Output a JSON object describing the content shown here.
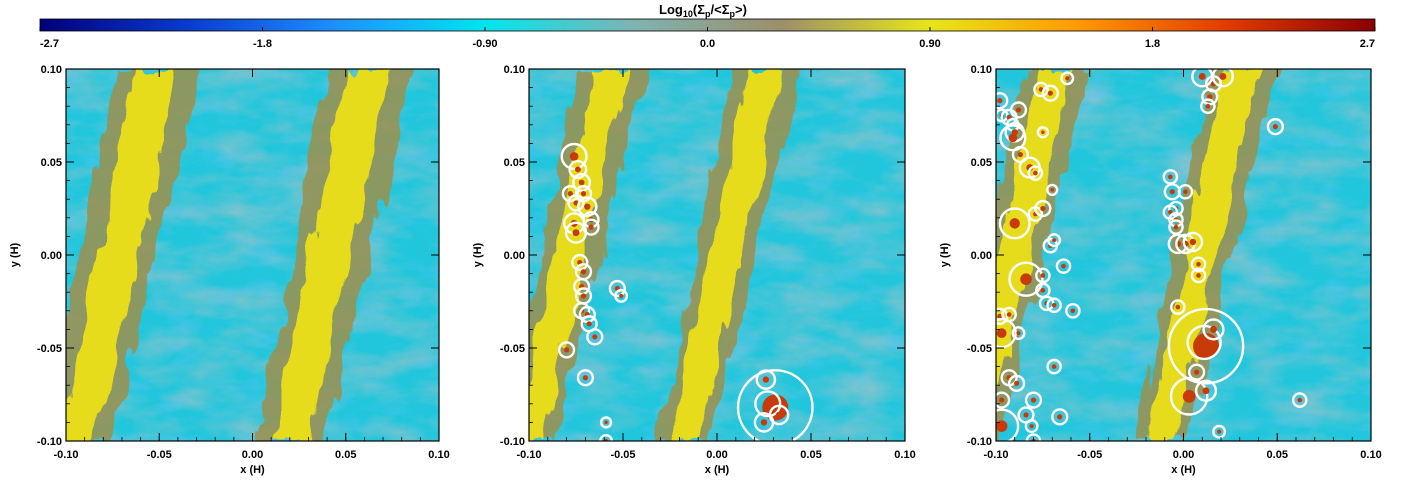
{
  "colorbar": {
    "title_main": "Log",
    "title_sub": "10",
    "title_rest_a": "(Σ",
    "title_sub_b": "p",
    "title_rest_b": "/<Σ",
    "title_sub_c": "p",
    "title_rest_c": ">)",
    "ticks": [
      "-2.7",
      "-1.8",
      "-0.90",
      "0.0",
      "0.90",
      "1.8",
      "2.7"
    ],
    "range": [
      -2.7,
      2.7
    ],
    "colors": [
      "#00007a",
      "#0a3bd0",
      "#1e90ff",
      "#00e5ee",
      "#7fb3b3",
      "#9c8f6a",
      "#e7e619",
      "#ff9900",
      "#e23b00",
      "#8a0000"
    ]
  },
  "colors": {
    "cyan": "#22c6dc",
    "gray_blue": "#6e9aa4",
    "yellow": "#e6dc1e",
    "olive": "#9c8f4e",
    "ring": "#ffffff",
    "core": "#c83a0a"
  },
  "chart_data": [
    {
      "type": "heatmap",
      "panel": "left",
      "xlabel": "x (H)",
      "ylabel": "y (H)",
      "xlim": [
        -0.1,
        0.1
      ],
      "ylim": [
        -0.1,
        0.1
      ],
      "xticks": [
        "-0.10",
        "-0.05",
        "0.00",
        "0.05",
        "0.10"
      ],
      "yticks": [
        "-0.10",
        "-0.05",
        "0.00",
        "0.05",
        "0.10"
      ],
      "filaments_x_at_y0": [
        -0.072,
        0.042
      ],
      "clumps": []
    },
    {
      "type": "heatmap",
      "panel": "middle",
      "xlabel": "x (H)",
      "ylabel": "y (H)",
      "xlim": [
        -0.1,
        0.1
      ],
      "ylim": [
        -0.1,
        0.1
      ],
      "xticks": [
        "-0.10",
        "-0.05",
        "0.00",
        "0.05",
        "0.10"
      ],
      "yticks": [
        "-0.10",
        "-0.05",
        "0.00",
        "0.05",
        "0.10"
      ],
      "filaments_x_at_y0": [
        -0.078,
        0.005
      ],
      "clumps": [
        {
          "x": -0.076,
          "y": 0.053,
          "r": 0.003
        },
        {
          "x": -0.074,
          "y": 0.046,
          "r": 0.002
        },
        {
          "x": -0.072,
          "y": 0.039,
          "r": 0.002
        },
        {
          "x": -0.078,
          "y": 0.033,
          "r": 0.0018
        },
        {
          "x": -0.071,
          "y": 0.033,
          "r": 0.0018
        },
        {
          "x": -0.075,
          "y": 0.028,
          "r": 0.0018
        },
        {
          "x": -0.069,
          "y": 0.026,
          "r": 0.0022
        },
        {
          "x": -0.067,
          "y": 0.019,
          "r": 0.0018
        },
        {
          "x": -0.076,
          "y": 0.017,
          "r": 0.0024
        },
        {
          "x": -0.075,
          "y": 0.012,
          "r": 0.0024
        },
        {
          "x": -0.067,
          "y": 0.015,
          "r": 0.0018
        },
        {
          "x": -0.073,
          "y": -0.004,
          "r": 0.0018
        },
        {
          "x": -0.071,
          "y": -0.009,
          "r": 0.0018
        },
        {
          "x": -0.072,
          "y": -0.017,
          "r": 0.0018
        },
        {
          "x": -0.071,
          "y": -0.022,
          "r": 0.0018
        },
        {
          "x": -0.072,
          "y": -0.03,
          "r": 0.0018
        },
        {
          "x": -0.069,
          "y": -0.032,
          "r": 0.0018
        },
        {
          "x": -0.068,
          "y": -0.037,
          "r": 0.0018
        },
        {
          "x": -0.065,
          "y": -0.044,
          "r": 0.0018
        },
        {
          "x": -0.08,
          "y": -0.051,
          "r": 0.0018
        },
        {
          "x": -0.07,
          "y": -0.066,
          "r": 0.0018
        },
        {
          "x": -0.053,
          "y": -0.018,
          "r": 0.0018
        },
        {
          "x": -0.051,
          "y": -0.022,
          "r": 0.0014
        },
        {
          "x": -0.059,
          "y": -0.09,
          "r": 0.0012
        },
        {
          "x": -0.059,
          "y": -0.1,
          "r": 0.0014
        },
        {
          "x": 0.026,
          "y": -0.067,
          "r": 0.0022
        },
        {
          "x": 0.031,
          "y": -0.082,
          "r": 0.009
        },
        {
          "x": 0.027,
          "y": -0.08,
          "r": 0.003
        },
        {
          "x": 0.025,
          "y": -0.09,
          "r": 0.0022
        },
        {
          "x": 0.033,
          "y": -0.086,
          "r": 0.0022
        }
      ]
    },
    {
      "type": "heatmap",
      "panel": "right",
      "xlabel": "x (H)",
      "ylabel": "y (H)",
      "xlim": [
        -0.1,
        0.1
      ],
      "ylim": [
        -0.1,
        0.1
      ],
      "xticks": [
        "-0.10",
        "-0.05",
        "0.00",
        "0.05",
        "0.10"
      ],
      "yticks": [
        "-0.10",
        "-0.05",
        "0.00",
        "0.05",
        "0.10"
      ],
      "filaments_x_at_y0": [
        -0.09,
        0.01
      ],
      "clumps": [
        {
          "x": -0.098,
          "y": 0.083,
          "r": 0.0018
        },
        {
          "x": -0.097,
          "y": 0.075,
          "r": 0.0014
        },
        {
          "x": -0.093,
          "y": 0.074,
          "r": 0.0018
        },
        {
          "x": -0.091,
          "y": 0.07,
          "r": 0.0014
        },
        {
          "x": -0.088,
          "y": 0.078,
          "r": 0.0018
        },
        {
          "x": -0.09,
          "y": 0.066,
          "r": 0.0022
        },
        {
          "x": -0.091,
          "y": 0.063,
          "r": 0.003
        },
        {
          "x": -0.087,
          "y": 0.054,
          "r": 0.0018
        },
        {
          "x": -0.082,
          "y": 0.047,
          "r": 0.0024
        },
        {
          "x": -0.079,
          "y": 0.044,
          "r": 0.0016
        },
        {
          "x": -0.076,
          "y": 0.089,
          "r": 0.0016
        },
        {
          "x": -0.071,
          "y": 0.087,
          "r": 0.0018
        },
        {
          "x": -0.062,
          "y": 0.095,
          "r": 0.0014
        },
        {
          "x": -0.075,
          "y": 0.066,
          "r": 0.0012
        },
        {
          "x": -0.07,
          "y": 0.035,
          "r": 0.0012
        },
        {
          "x": -0.079,
          "y": 0.022,
          "r": 0.0016
        },
        {
          "x": -0.075,
          "y": 0.025,
          "r": 0.0018
        },
        {
          "x": -0.09,
          "y": 0.017,
          "r": 0.0036
        },
        {
          "x": -0.071,
          "y": 0.005,
          "r": 0.0016
        },
        {
          "x": -0.069,
          "y": 0.008,
          "r": 0.0014
        },
        {
          "x": -0.064,
          "y": -0.006,
          "r": 0.0016
        },
        {
          "x": -0.084,
          "y": -0.013,
          "r": 0.004
        },
        {
          "x": -0.075,
          "y": -0.011,
          "r": 0.0016
        },
        {
          "x": -0.075,
          "y": -0.019,
          "r": 0.0016
        },
        {
          "x": -0.073,
          "y": -0.026,
          "r": 0.0016
        },
        {
          "x": -0.069,
          "y": -0.027,
          "r": 0.0016
        },
        {
          "x": -0.059,
          "y": -0.03,
          "r": 0.0016
        },
        {
          "x": -0.098,
          "y": -0.033,
          "r": 0.0018
        },
        {
          "x": -0.093,
          "y": -0.032,
          "r": 0.0016
        },
        {
          "x": -0.097,
          "y": -0.042,
          "r": 0.0034
        },
        {
          "x": -0.088,
          "y": -0.042,
          "r": 0.0014
        },
        {
          "x": -0.069,
          "y": -0.06,
          "r": 0.0016
        },
        {
          "x": -0.093,
          "y": -0.066,
          "r": 0.0018
        },
        {
          "x": -0.089,
          "y": -0.069,
          "r": 0.0018
        },
        {
          "x": -0.097,
          "y": -0.078,
          "r": 0.0018
        },
        {
          "x": -0.08,
          "y": -0.078,
          "r": 0.0018
        },
        {
          "x": -0.084,
          "y": -0.086,
          "r": 0.0018
        },
        {
          "x": -0.066,
          "y": -0.087,
          "r": 0.0018
        },
        {
          "x": -0.097,
          "y": -0.092,
          "r": 0.004
        },
        {
          "x": -0.081,
          "y": -0.092,
          "r": 0.0014
        },
        {
          "x": -0.08,
          "y": -0.1,
          "r": 0.0016
        },
        {
          "x": -0.007,
          "y": 0.042,
          "r": 0.0016
        },
        {
          "x": -0.006,
          "y": 0.034,
          "r": 0.0018
        },
        {
          "x": 0.001,
          "y": 0.034,
          "r": 0.0016
        },
        {
          "x": -0.004,
          "y": 0.025,
          "r": 0.0016
        },
        {
          "x": -0.007,
          "y": 0.023,
          "r": 0.0016
        },
        {
          "x": -0.004,
          "y": 0.019,
          "r": 0.0016
        },
        {
          "x": -0.004,
          "y": 0.015,
          "r": 0.0016
        },
        {
          "x": -0.003,
          "y": 0.006,
          "r": 0.0022
        },
        {
          "x": 0.001,
          "y": 0.006,
          "r": 0.0022
        },
        {
          "x": 0.005,
          "y": 0.007,
          "r": 0.0022
        },
        {
          "x": 0.008,
          "y": -0.005,
          "r": 0.0016
        },
        {
          "x": 0.008,
          "y": -0.011,
          "r": 0.0016
        },
        {
          "x": -0.003,
          "y": -0.028,
          "r": 0.0016
        },
        {
          "x": 0.012,
          "y": -0.049,
          "r": 0.009
        },
        {
          "x": 0.011,
          "y": -0.047,
          "r": 0.004
        },
        {
          "x": 0.016,
          "y": -0.04,
          "r": 0.0024
        },
        {
          "x": 0.007,
          "y": -0.063,
          "r": 0.0018
        },
        {
          "x": 0.003,
          "y": -0.076,
          "r": 0.0044
        },
        {
          "x": 0.012,
          "y": -0.073,
          "r": 0.0024
        },
        {
          "x": 0.019,
          "y": -0.095,
          "r": 0.0014
        },
        {
          "x": 0.01,
          "y": 0.096,
          "r": 0.0024
        },
        {
          "x": 0.016,
          "y": 0.092,
          "r": 0.0018
        },
        {
          "x": 0.021,
          "y": 0.096,
          "r": 0.0024
        },
        {
          "x": 0.014,
          "y": 0.085,
          "r": 0.0018
        },
        {
          "x": 0.013,
          "y": 0.08,
          "r": 0.0016
        },
        {
          "x": 0.049,
          "y": 0.069,
          "r": 0.0018
        },
        {
          "x": 0.062,
          "y": -0.078,
          "r": 0.0016
        }
      ]
    }
  ]
}
